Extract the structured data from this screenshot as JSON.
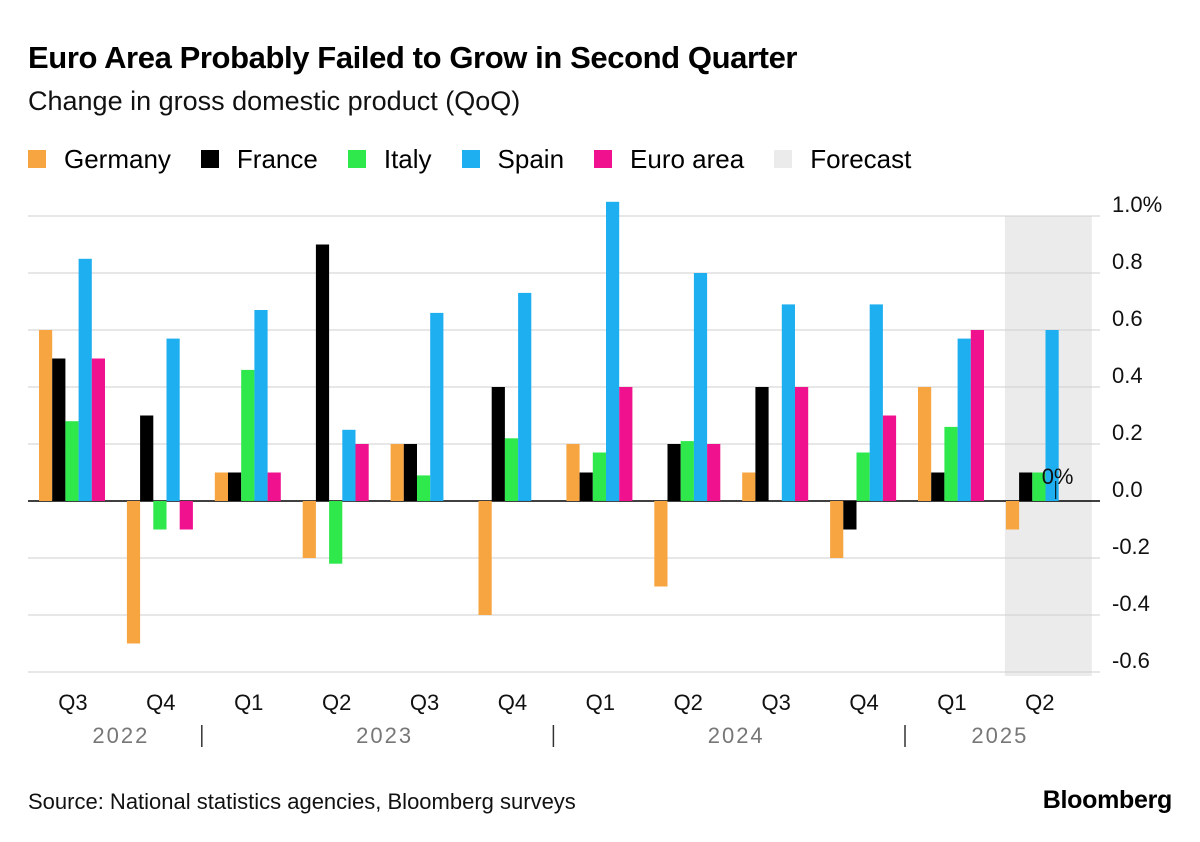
{
  "title": "Euro Area Probably Failed to Grow in Second Quarter",
  "subtitle": "Change in gross domestic product (QoQ)",
  "legend": [
    {
      "label": "Germany",
      "color": "#F7A541"
    },
    {
      "label": "France",
      "color": "#000000"
    },
    {
      "label": "Italy",
      "color": "#2EE84C"
    },
    {
      "label": "Spain",
      "color": "#1EAFF0"
    },
    {
      "label": "Euro area",
      "color": "#F0118E"
    },
    {
      "label": "Forecast",
      "color": "#EBEBEB"
    }
  ],
  "chart_data": {
    "type": "bar",
    "title": "Euro Area Probably Failed to Grow in Second Quarter",
    "ylabel": "Change in gross domestic product (QoQ)",
    "unit": "%",
    "ylim": [
      -0.6,
      1.0
    ],
    "y_ticks": [
      1.0,
      0.8,
      0.6,
      0.4,
      0.2,
      0.0,
      -0.2,
      -0.4,
      -0.6
    ],
    "y_tick_labels": [
      "1.0%",
      "0.8",
      "0.6",
      "0.4",
      "0.2",
      "0.0",
      "-0.2",
      "-0.4",
      "-0.6"
    ],
    "categories": [
      "Q3",
      "Q4",
      "Q1",
      "Q2",
      "Q3",
      "Q4",
      "Q1",
      "Q2",
      "Q3",
      "Q4",
      "Q1",
      "Q2"
    ],
    "years": [
      {
        "label": "2022",
        "start": 0,
        "end": 1
      },
      {
        "label": "2023",
        "start": 2,
        "end": 5
      },
      {
        "label": "2024",
        "start": 6,
        "end": 9
      },
      {
        "label": "2025",
        "start": 10,
        "end": 11
      }
    ],
    "year_separators_after": [
      1,
      5,
      9
    ],
    "forecast_index": 11,
    "forecast_label": "Forecast",
    "series": [
      {
        "name": "Germany",
        "color": "#F7A541",
        "values": [
          0.6,
          -0.5,
          0.1,
          -0.2,
          0.2,
          -0.4,
          0.2,
          -0.3,
          0.1,
          -0.2,
          0.4,
          -0.1
        ]
      },
      {
        "name": "France",
        "color": "#000000",
        "values": [
          0.5,
          0.3,
          0.1,
          0.9,
          0.2,
          0.4,
          0.1,
          0.2,
          0.4,
          -0.1,
          0.1,
          0.1
        ]
      },
      {
        "name": "Italy",
        "color": "#2EE84C",
        "values": [
          0.28,
          -0.1,
          0.46,
          -0.22,
          0.09,
          0.22,
          0.17,
          0.21,
          0.0,
          0.17,
          0.26,
          0.1
        ]
      },
      {
        "name": "Spain",
        "color": "#1EAFF0",
        "values": [
          0.85,
          0.57,
          0.67,
          0.25,
          0.66,
          0.73,
          1.05,
          0.8,
          0.69,
          0.69,
          0.57,
          0.6
        ]
      },
      {
        "name": "Euro area",
        "color": "#F0118E",
        "values": [
          0.5,
          -0.1,
          0.1,
          0.2,
          0.0,
          0.0,
          0.4,
          0.2,
          0.4,
          0.3,
          0.6,
          0.0
        ]
      }
    ],
    "annotations": [
      {
        "text": "0%",
        "category_index": 11,
        "series": "Euro area",
        "value": 0.0
      }
    ]
  },
  "source": "Source: National statistics agencies, Bloomberg surveys",
  "brand": "Bloomberg"
}
